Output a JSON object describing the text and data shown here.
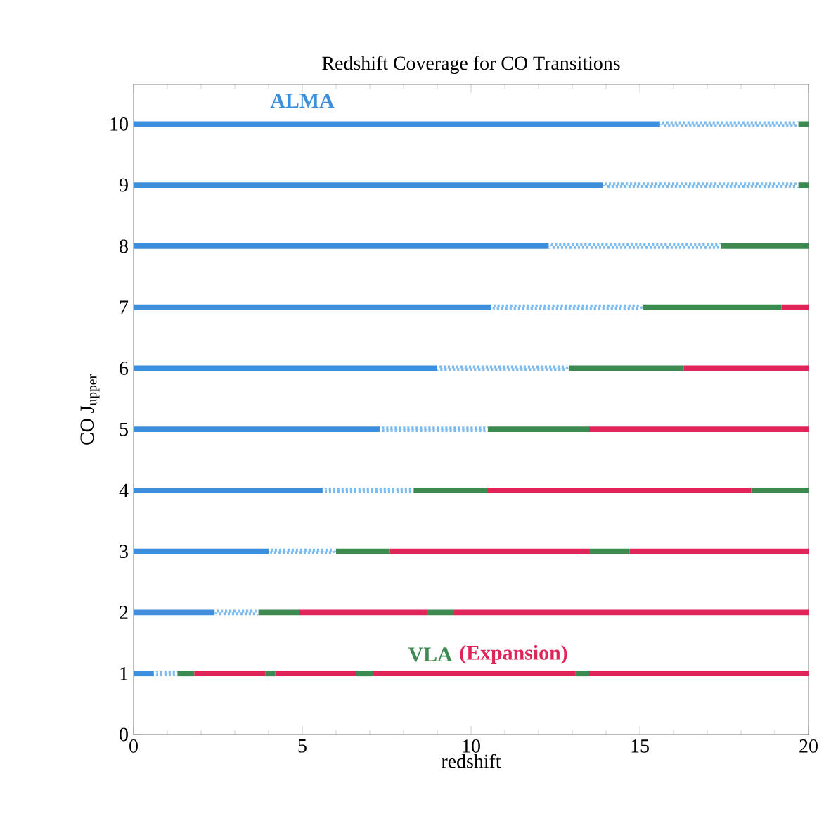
{
  "chart_data": {
    "type": "bar",
    "orientation": "horizontal",
    "stacked": true,
    "title": "Redshift Coverage for CO Transitions",
    "xlabel": "redshift",
    "ylabel": "CO J$_{upper}$",
    "categories": [
      "10",
      "9",
      "8",
      "7",
      "6",
      "5",
      "4",
      "3",
      "2",
      "1",
      "0"
    ],
    "xlim": [
      0,
      20
    ],
    "xticks": [
      0,
      5,
      10,
      15,
      20
    ],
    "series": [
      {
        "name": "ALMA",
        "color": "#3d8fdc",
        "values": [
          15.6,
          13.9,
          12.3,
          10.6,
          9.0,
          7.3,
          5.6,
          4.0,
          2.4,
          0.6,
          null
        ]
      },
      {
        "color": "#7cbcf0",
        "line_style": "dotted",
        "values": [
          4.1,
          5.8,
          5.1,
          4.5,
          3.9,
          3.2,
          2.7,
          2.0,
          1.3,
          0.7,
          null
        ]
      },
      {
        "name": "VLA",
        "color": "#3c8a50",
        "values": [
          0.3,
          0.3,
          2.6,
          4.1,
          3.4,
          3.0,
          2.2,
          1.6,
          1.2,
          0.5,
          null
        ]
      },
      {
        "name": "(Expansion)",
        "color": "#e0245a",
        "values": [
          null,
          null,
          null,
          0.8,
          3.7,
          6.5,
          7.8,
          5.9,
          3.8,
          2.1,
          null
        ]
      },
      {
        "color": "#3c8a50",
        "values": [
          null,
          null,
          null,
          null,
          null,
          null,
          1.7,
          1.2,
          0.8,
          0.3,
          null
        ]
      },
      {
        "color": "#e0245a",
        "values": [
          null,
          null,
          null,
          null,
          null,
          null,
          null,
          5.3,
          10.5,
          2.4,
          null
        ]
      },
      {
        "color": "#3c8a50",
        "values": [
          null,
          null,
          null,
          null,
          null,
          null,
          null,
          null,
          null,
          0.5,
          null
        ]
      },
      {
        "color": "#e0245a",
        "values": [
          null,
          null,
          null,
          null,
          null,
          null,
          null,
          null,
          null,
          6.0,
          null
        ]
      },
      {
        "color": "#3c8a50",
        "values": [
          null,
          null,
          null,
          null,
          null,
          null,
          null,
          null,
          null,
          0.4,
          null
        ]
      },
      {
        "color": "#e0245a",
        "values": [
          null,
          null,
          null,
          null,
          null,
          null,
          null,
          null,
          null,
          6.5,
          null
        ]
      }
    ]
  }
}
